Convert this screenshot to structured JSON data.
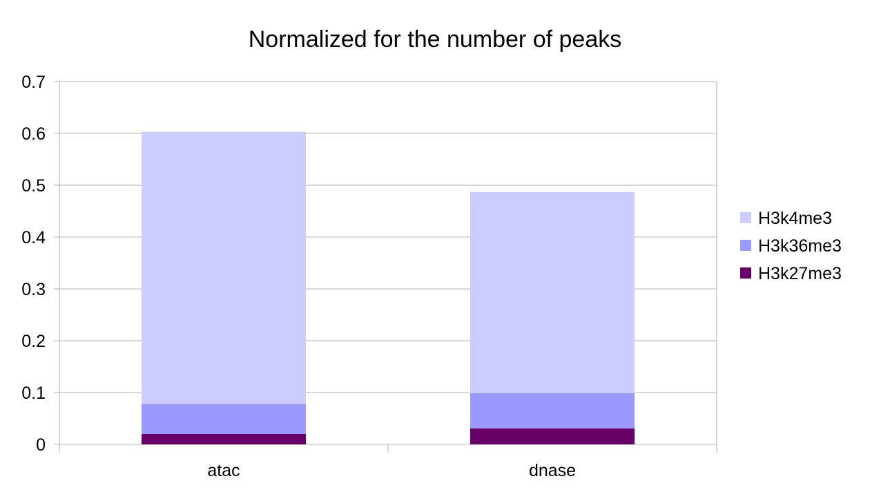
{
  "chart_data": {
    "type": "bar",
    "stacked": true,
    "title": "Normalized for the number of peaks",
    "xlabel": "",
    "ylabel": "",
    "categories": [
      "atac",
      "dnase"
    ],
    "series": [
      {
        "name": "H3k27me3",
        "values": [
          0.02,
          0.031
        ],
        "color": "#660066"
      },
      {
        "name": "H3k36me3",
        "values": [
          0.058,
          0.068
        ],
        "color": "#9999ff"
      },
      {
        "name": "H3k4me3",
        "values": [
          0.525,
          0.388
        ],
        "color": "#ccccff"
      }
    ],
    "ylim": [
      0,
      0.7
    ],
    "yticks": [
      "0",
      "0.1",
      "0.2",
      "0.3",
      "0.4",
      "0.5",
      "0.6",
      "0.7"
    ],
    "grid": true,
    "legend_position": "right",
    "legend_order": [
      "H3k4me3",
      "H3k36me3",
      "H3k27me3"
    ]
  }
}
